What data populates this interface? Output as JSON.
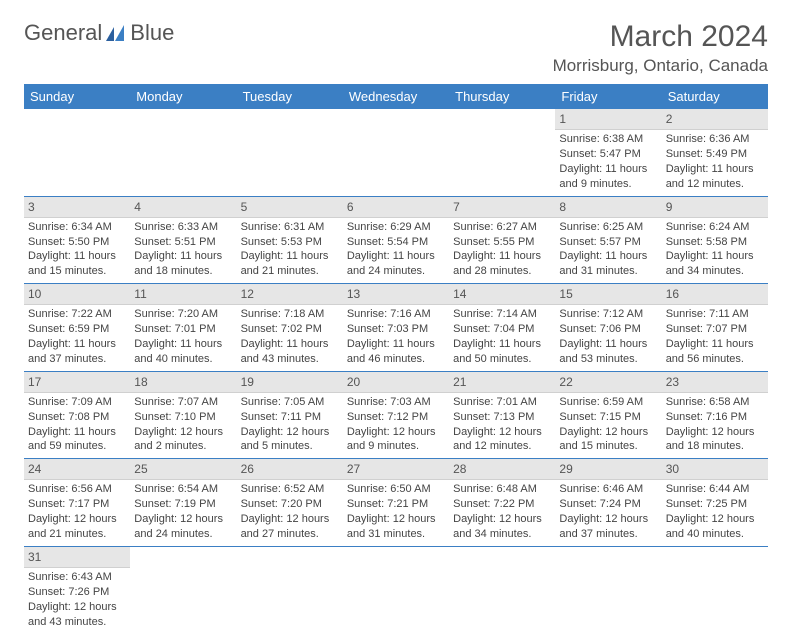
{
  "logo": {
    "text1": "General",
    "text2": "Blue"
  },
  "title": "March 2024",
  "location": "Morrisburg, Ontario, Canada",
  "colors": {
    "header_bg": "#3b7fc4",
    "header_text": "#ffffff",
    "daybar_bg": "#e6e6e6",
    "row_border": "#3b7fc4",
    "body_text": "#444444",
    "title_text": "#555555"
  },
  "columns": [
    "Sunday",
    "Monday",
    "Tuesday",
    "Wednesday",
    "Thursday",
    "Friday",
    "Saturday"
  ],
  "weeks": [
    [
      null,
      null,
      null,
      null,
      null,
      {
        "n": "1",
        "sr": "Sunrise: 6:38 AM",
        "ss": "Sunset: 5:47 PM",
        "dl": "Daylight: 11 hours and 9 minutes."
      },
      {
        "n": "2",
        "sr": "Sunrise: 6:36 AM",
        "ss": "Sunset: 5:49 PM",
        "dl": "Daylight: 11 hours and 12 minutes."
      }
    ],
    [
      {
        "n": "3",
        "sr": "Sunrise: 6:34 AM",
        "ss": "Sunset: 5:50 PM",
        "dl": "Daylight: 11 hours and 15 minutes."
      },
      {
        "n": "4",
        "sr": "Sunrise: 6:33 AM",
        "ss": "Sunset: 5:51 PM",
        "dl": "Daylight: 11 hours and 18 minutes."
      },
      {
        "n": "5",
        "sr": "Sunrise: 6:31 AM",
        "ss": "Sunset: 5:53 PM",
        "dl": "Daylight: 11 hours and 21 minutes."
      },
      {
        "n": "6",
        "sr": "Sunrise: 6:29 AM",
        "ss": "Sunset: 5:54 PM",
        "dl": "Daylight: 11 hours and 24 minutes."
      },
      {
        "n": "7",
        "sr": "Sunrise: 6:27 AM",
        "ss": "Sunset: 5:55 PM",
        "dl": "Daylight: 11 hours and 28 minutes."
      },
      {
        "n": "8",
        "sr": "Sunrise: 6:25 AM",
        "ss": "Sunset: 5:57 PM",
        "dl": "Daylight: 11 hours and 31 minutes."
      },
      {
        "n": "9",
        "sr": "Sunrise: 6:24 AM",
        "ss": "Sunset: 5:58 PM",
        "dl": "Daylight: 11 hours and 34 minutes."
      }
    ],
    [
      {
        "n": "10",
        "sr": "Sunrise: 7:22 AM",
        "ss": "Sunset: 6:59 PM",
        "dl": "Daylight: 11 hours and 37 minutes."
      },
      {
        "n": "11",
        "sr": "Sunrise: 7:20 AM",
        "ss": "Sunset: 7:01 PM",
        "dl": "Daylight: 11 hours and 40 minutes."
      },
      {
        "n": "12",
        "sr": "Sunrise: 7:18 AM",
        "ss": "Sunset: 7:02 PM",
        "dl": "Daylight: 11 hours and 43 minutes."
      },
      {
        "n": "13",
        "sr": "Sunrise: 7:16 AM",
        "ss": "Sunset: 7:03 PM",
        "dl": "Daylight: 11 hours and 46 minutes."
      },
      {
        "n": "14",
        "sr": "Sunrise: 7:14 AM",
        "ss": "Sunset: 7:04 PM",
        "dl": "Daylight: 11 hours and 50 minutes."
      },
      {
        "n": "15",
        "sr": "Sunrise: 7:12 AM",
        "ss": "Sunset: 7:06 PM",
        "dl": "Daylight: 11 hours and 53 minutes."
      },
      {
        "n": "16",
        "sr": "Sunrise: 7:11 AM",
        "ss": "Sunset: 7:07 PM",
        "dl": "Daylight: 11 hours and 56 minutes."
      }
    ],
    [
      {
        "n": "17",
        "sr": "Sunrise: 7:09 AM",
        "ss": "Sunset: 7:08 PM",
        "dl": "Daylight: 11 hours and 59 minutes."
      },
      {
        "n": "18",
        "sr": "Sunrise: 7:07 AM",
        "ss": "Sunset: 7:10 PM",
        "dl": "Daylight: 12 hours and 2 minutes."
      },
      {
        "n": "19",
        "sr": "Sunrise: 7:05 AM",
        "ss": "Sunset: 7:11 PM",
        "dl": "Daylight: 12 hours and 5 minutes."
      },
      {
        "n": "20",
        "sr": "Sunrise: 7:03 AM",
        "ss": "Sunset: 7:12 PM",
        "dl": "Daylight: 12 hours and 9 minutes."
      },
      {
        "n": "21",
        "sr": "Sunrise: 7:01 AM",
        "ss": "Sunset: 7:13 PM",
        "dl": "Daylight: 12 hours and 12 minutes."
      },
      {
        "n": "22",
        "sr": "Sunrise: 6:59 AM",
        "ss": "Sunset: 7:15 PM",
        "dl": "Daylight: 12 hours and 15 minutes."
      },
      {
        "n": "23",
        "sr": "Sunrise: 6:58 AM",
        "ss": "Sunset: 7:16 PM",
        "dl": "Daylight: 12 hours and 18 minutes."
      }
    ],
    [
      {
        "n": "24",
        "sr": "Sunrise: 6:56 AM",
        "ss": "Sunset: 7:17 PM",
        "dl": "Daylight: 12 hours and 21 minutes."
      },
      {
        "n": "25",
        "sr": "Sunrise: 6:54 AM",
        "ss": "Sunset: 7:19 PM",
        "dl": "Daylight: 12 hours and 24 minutes."
      },
      {
        "n": "26",
        "sr": "Sunrise: 6:52 AM",
        "ss": "Sunset: 7:20 PM",
        "dl": "Daylight: 12 hours and 27 minutes."
      },
      {
        "n": "27",
        "sr": "Sunrise: 6:50 AM",
        "ss": "Sunset: 7:21 PM",
        "dl": "Daylight: 12 hours and 31 minutes."
      },
      {
        "n": "28",
        "sr": "Sunrise: 6:48 AM",
        "ss": "Sunset: 7:22 PM",
        "dl": "Daylight: 12 hours and 34 minutes."
      },
      {
        "n": "29",
        "sr": "Sunrise: 6:46 AM",
        "ss": "Sunset: 7:24 PM",
        "dl": "Daylight: 12 hours and 37 minutes."
      },
      {
        "n": "30",
        "sr": "Sunrise: 6:44 AM",
        "ss": "Sunset: 7:25 PM",
        "dl": "Daylight: 12 hours and 40 minutes."
      }
    ],
    [
      {
        "n": "31",
        "sr": "Sunrise: 6:43 AM",
        "ss": "Sunset: 7:26 PM",
        "dl": "Daylight: 12 hours and 43 minutes."
      },
      null,
      null,
      null,
      null,
      null,
      null
    ]
  ]
}
